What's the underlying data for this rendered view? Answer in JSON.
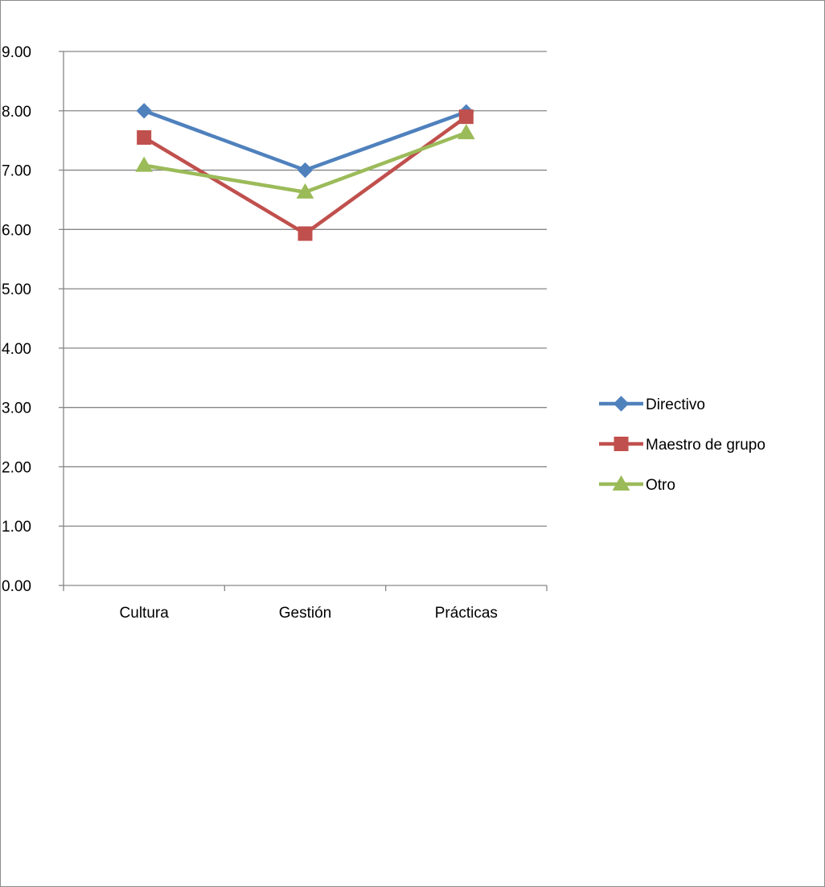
{
  "chart_data": {
    "type": "line",
    "title": "",
    "xlabel": "",
    "ylabel": "",
    "categories": [
      "Cultura",
      "Gestión",
      "Prácticas"
    ],
    "ylim": [
      0,
      9
    ],
    "yticks": [
      "0.00",
      "1.00",
      "2.00",
      "3.00",
      "4.00",
      "5.00",
      "6.00",
      "7.00",
      "8.00",
      "9.00"
    ],
    "grid": true,
    "legend_position": "right",
    "series": [
      {
        "name": "Directivo",
        "values": [
          8.0,
          7.0,
          7.98
        ],
        "color": "#4F81BD",
        "marker": "diamond"
      },
      {
        "name": "Maestro de grupo",
        "values": [
          7.55,
          5.93,
          7.9
        ],
        "color": "#C0504D",
        "marker": "square"
      },
      {
        "name": "Otro",
        "values": [
          7.08,
          6.63,
          7.63
        ],
        "color": "#9BBB59",
        "marker": "triangle"
      }
    ]
  }
}
